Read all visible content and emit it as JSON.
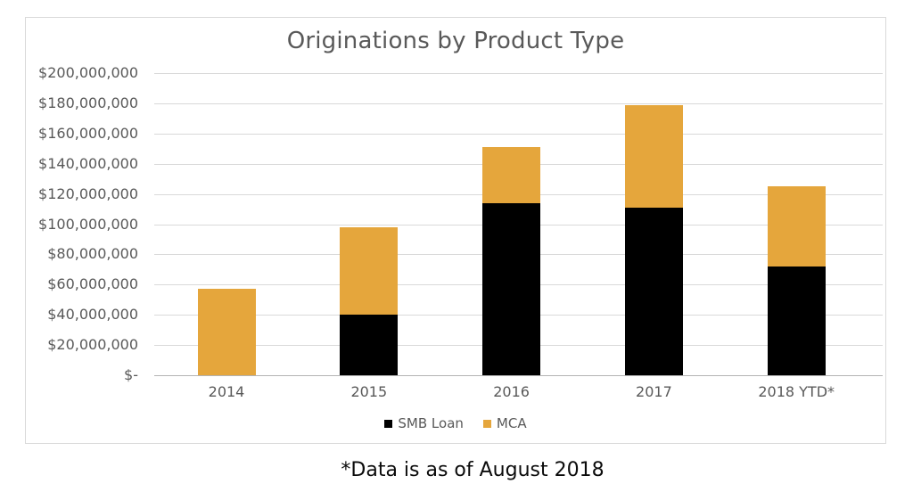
{
  "chart_data": {
    "type": "bar",
    "stacked": true,
    "title": "Originations by Product Type",
    "categories": [
      "2014",
      "2015",
      "2016",
      "2017",
      "2018 YTD*"
    ],
    "series": [
      {
        "name": "SMB Loan",
        "color": "#000000",
        "values": [
          0,
          40000000,
          114000000,
          111000000,
          72000000
        ]
      },
      {
        "name": "MCA",
        "color": "#e5a63c",
        "values": [
          57000000,
          58000000,
          37000000,
          68000000,
          53000000
        ]
      }
    ],
    "totals": [
      57000000,
      98000000,
      151000000,
      179000000,
      125000000
    ],
    "ylim": [
      0,
      200000000
    ],
    "ytick_step": 20000000,
    "ytick_labels_top_to_bottom": [
      "$200,000,000",
      "$180,000,000",
      "$160,000,000",
      "$140,000,000",
      "$120,000,000",
      "$100,000,000",
      "$80,000,000",
      "$60,000,000",
      "$40,000,000",
      "$20,000,000",
      "$-"
    ],
    "grid": true,
    "legend_position": "bottom",
    "colors": {
      "grid": "#d9d9d9",
      "axis_line": "#b3b3b3",
      "text": "#595959",
      "frame_border": "#d9d9d9",
      "background": "#ffffff"
    }
  },
  "footer": {
    "note": "*Data is as of August 2018"
  }
}
